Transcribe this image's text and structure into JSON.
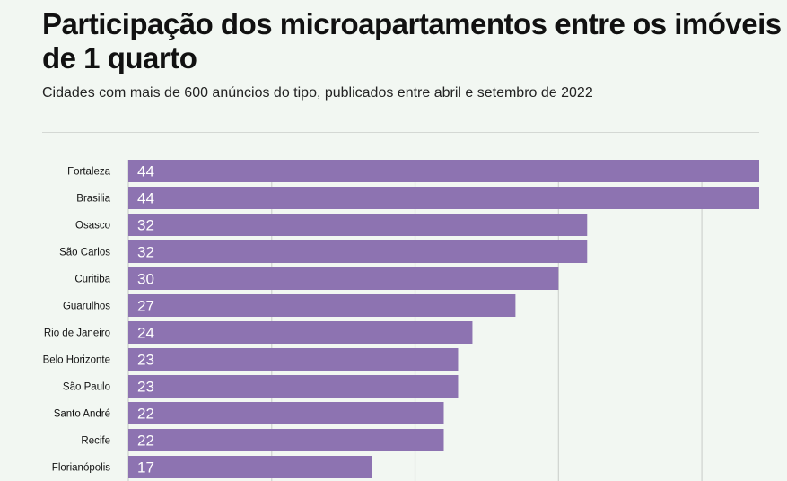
{
  "chart_data": {
    "type": "bar",
    "orientation": "horizontal",
    "title": "Participação dos microapartamentos entre os imóveis de 1 quarto",
    "subtitle": "Cidades com mais de 600 anúncios do tipo, publicados entre abril e setembro de 2022",
    "categories": [
      "Fortaleza",
      "Brasilia",
      "Osasco",
      "São Carlos",
      "Curitiba",
      "Guarulhos",
      "Rio de Janeiro",
      "Belo Horizonte",
      "São Paulo",
      "Santo André",
      "Recife",
      "Florianópolis"
    ],
    "values": [
      44,
      44,
      32,
      32,
      30,
      27,
      24,
      23,
      23,
      22,
      22,
      17
    ],
    "xlim": [
      0,
      44
    ],
    "gridlines": [
      10,
      20,
      30,
      40
    ],
    "grid": true,
    "bar_color": "#8d73b1",
    "background": "#f2f7f2"
  }
}
